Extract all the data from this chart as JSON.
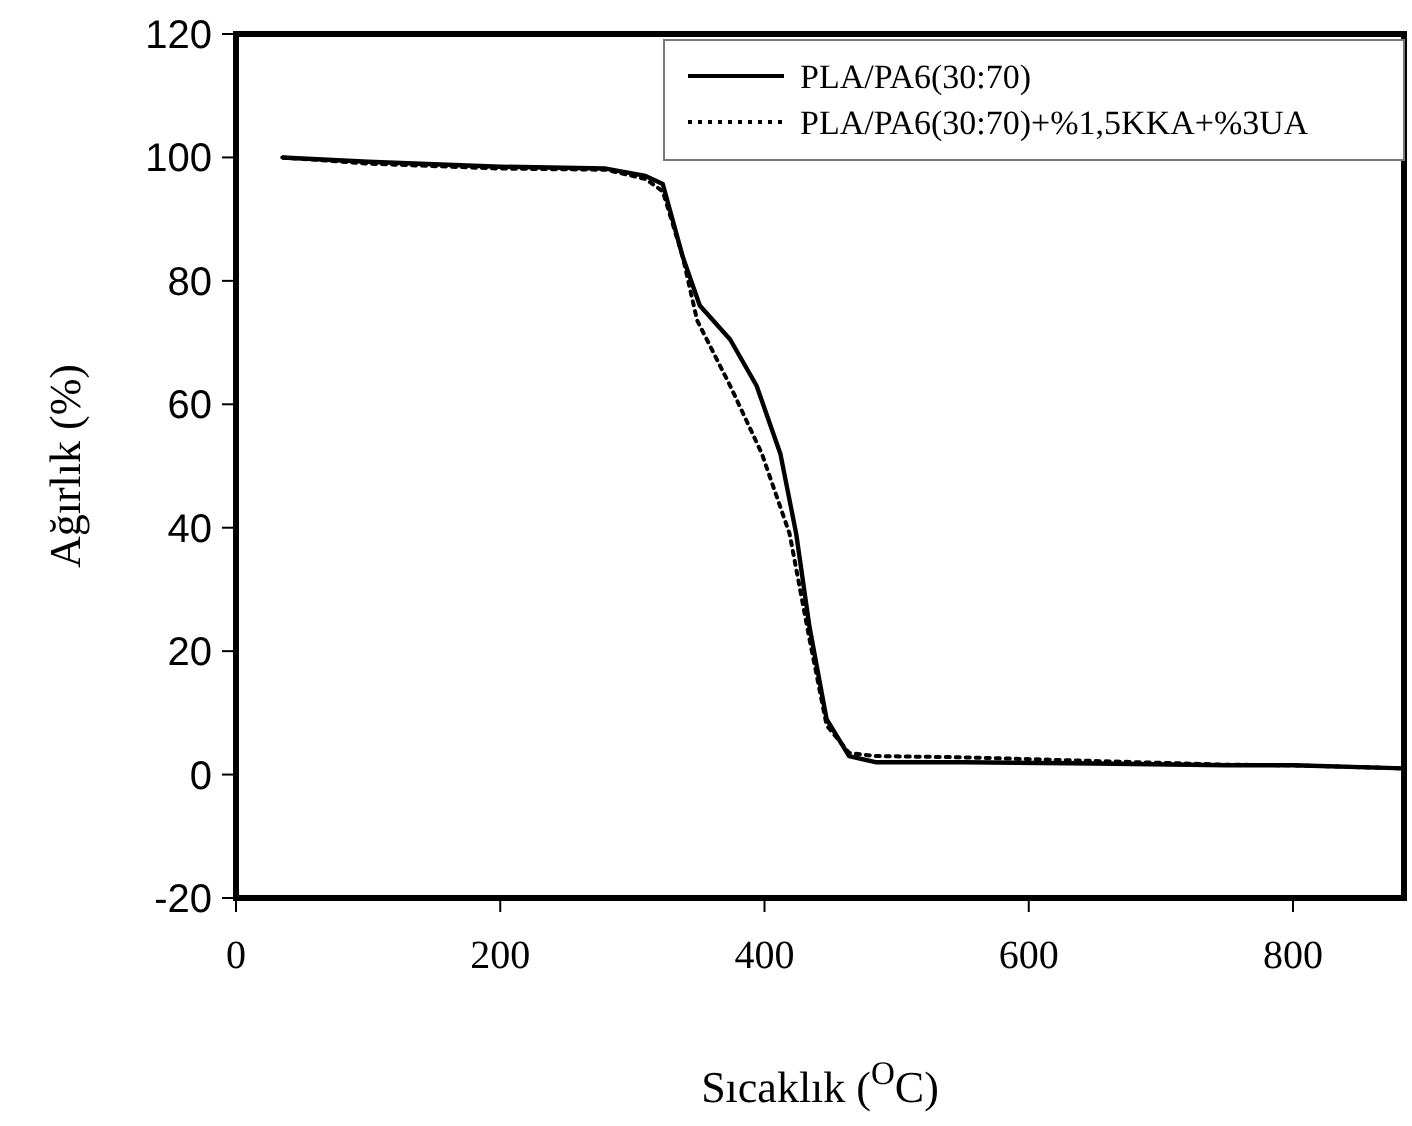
{
  "chart_data": {
    "type": "line",
    "xlabel": "Sıcaklık ($^{O}$C)",
    "ylabel": "Ağırlık (%)",
    "xlim": [
      0,
      884
    ],
    "ylim": [
      -20,
      120
    ],
    "xticks": [
      0,
      200,
      400,
      600,
      800
    ],
    "yticks": [
      -20,
      0,
      20,
      40,
      60,
      80,
      100,
      120
    ],
    "legend": "top right",
    "grid": false,
    "series": [
      {
        "name": "PLA/PA6(30:70)",
        "color": "#000000",
        "line_style": "solid",
        "x": [
          35,
          100,
          200,
          280,
          310,
          323,
          338,
          351,
          374,
          394,
          412,
          424,
          434,
          447,
          464,
          484,
          550,
          650,
          750,
          800,
          884
        ],
        "values": [
          100,
          99.3,
          98.5,
          98.2,
          97,
          95.7,
          84,
          76,
          70.5,
          63,
          52,
          39,
          24,
          9,
          3,
          2,
          2,
          1.8,
          1.5,
          1.5,
          1
        ]
      },
      {
        "name": "PLA/PA6(30:70)+%1,5KKA+%3UA",
        "color": "#000000",
        "line_style": "dotted",
        "x": [
          35,
          100,
          200,
          280,
          310,
          323,
          338,
          349,
          374,
          398,
          419,
          434,
          447,
          464,
          484,
          550,
          650,
          750,
          800,
          884
        ],
        "values": [
          100,
          99,
          98.2,
          98,
          96.5,
          94.5,
          84,
          73.6,
          63,
          52,
          39,
          22,
          8,
          3.5,
          3,
          2.8,
          2.2,
          1.6,
          1.5,
          1
        ]
      }
    ]
  }
}
